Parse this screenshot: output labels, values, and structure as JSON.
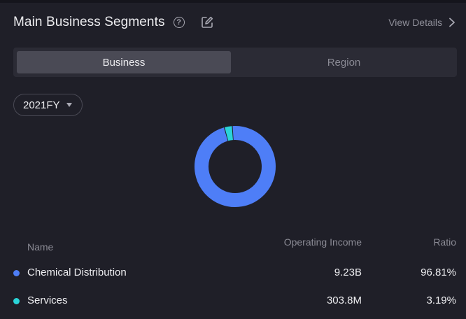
{
  "header": {
    "title": "Main Business Segments",
    "help_glyph": "?",
    "view_details_label": "View Details"
  },
  "tabs": [
    {
      "label": "Business",
      "active": true
    },
    {
      "label": "Region",
      "active": false
    }
  ],
  "period_select": {
    "value": "2021FY"
  },
  "table": {
    "columns": [
      "Name",
      "Operating Income",
      "Ratio"
    ],
    "rows": [
      {
        "name": "Chemical Distribution",
        "income": "9.23B",
        "ratio": "96.81%",
        "color": "#4e7ef7"
      },
      {
        "name": "Services",
        "income": "303.8M",
        "ratio": "3.19%",
        "color": "#2ad4d8"
      }
    ]
  },
  "chart_data": {
    "type": "pie",
    "style": "donut",
    "labels": [
      "Chemical Distribution",
      "Services"
    ],
    "values": [
      96.81,
      3.19
    ],
    "colors": [
      "#4e7ef7",
      "#2ad4d8"
    ]
  },
  "colors": {
    "background": "#1f1f28",
    "tab_bg": "#2b2b35",
    "active_tab": "#4a4a55"
  }
}
